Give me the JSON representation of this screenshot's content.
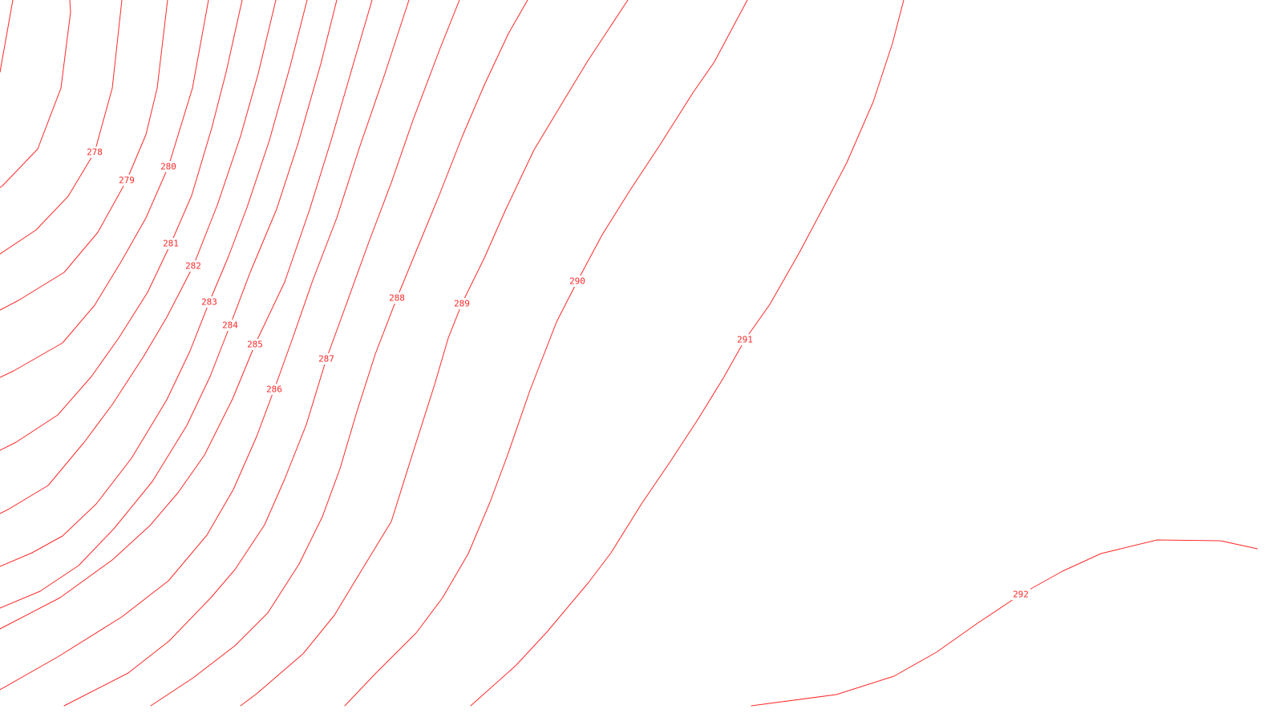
{
  "map": {
    "contour_color": "#ff2a2a",
    "background_color": "#ffffff",
    "contour_interval": 1,
    "contours": [
      {
        "elevation": 278,
        "label": "278"
      },
      {
        "elevation": 279,
        "label": "279"
      },
      {
        "elevation": 280,
        "label": "280"
      },
      {
        "elevation": 281,
        "label": "281"
      },
      {
        "elevation": 282,
        "label": "282"
      },
      {
        "elevation": 283,
        "label": "283"
      },
      {
        "elevation": 284,
        "label": "284"
      },
      {
        "elevation": 285,
        "label": "285"
      },
      {
        "elevation": 286,
        "label": "286"
      },
      {
        "elevation": 287,
        "label": "287"
      },
      {
        "elevation": 288,
        "label": "288"
      },
      {
        "elevation": 289,
        "label": "289"
      },
      {
        "elevation": 290,
        "label": "290"
      },
      {
        "elevation": 291,
        "label": "291"
      },
      {
        "elevation": 292,
        "label": "292"
      }
    ]
  }
}
